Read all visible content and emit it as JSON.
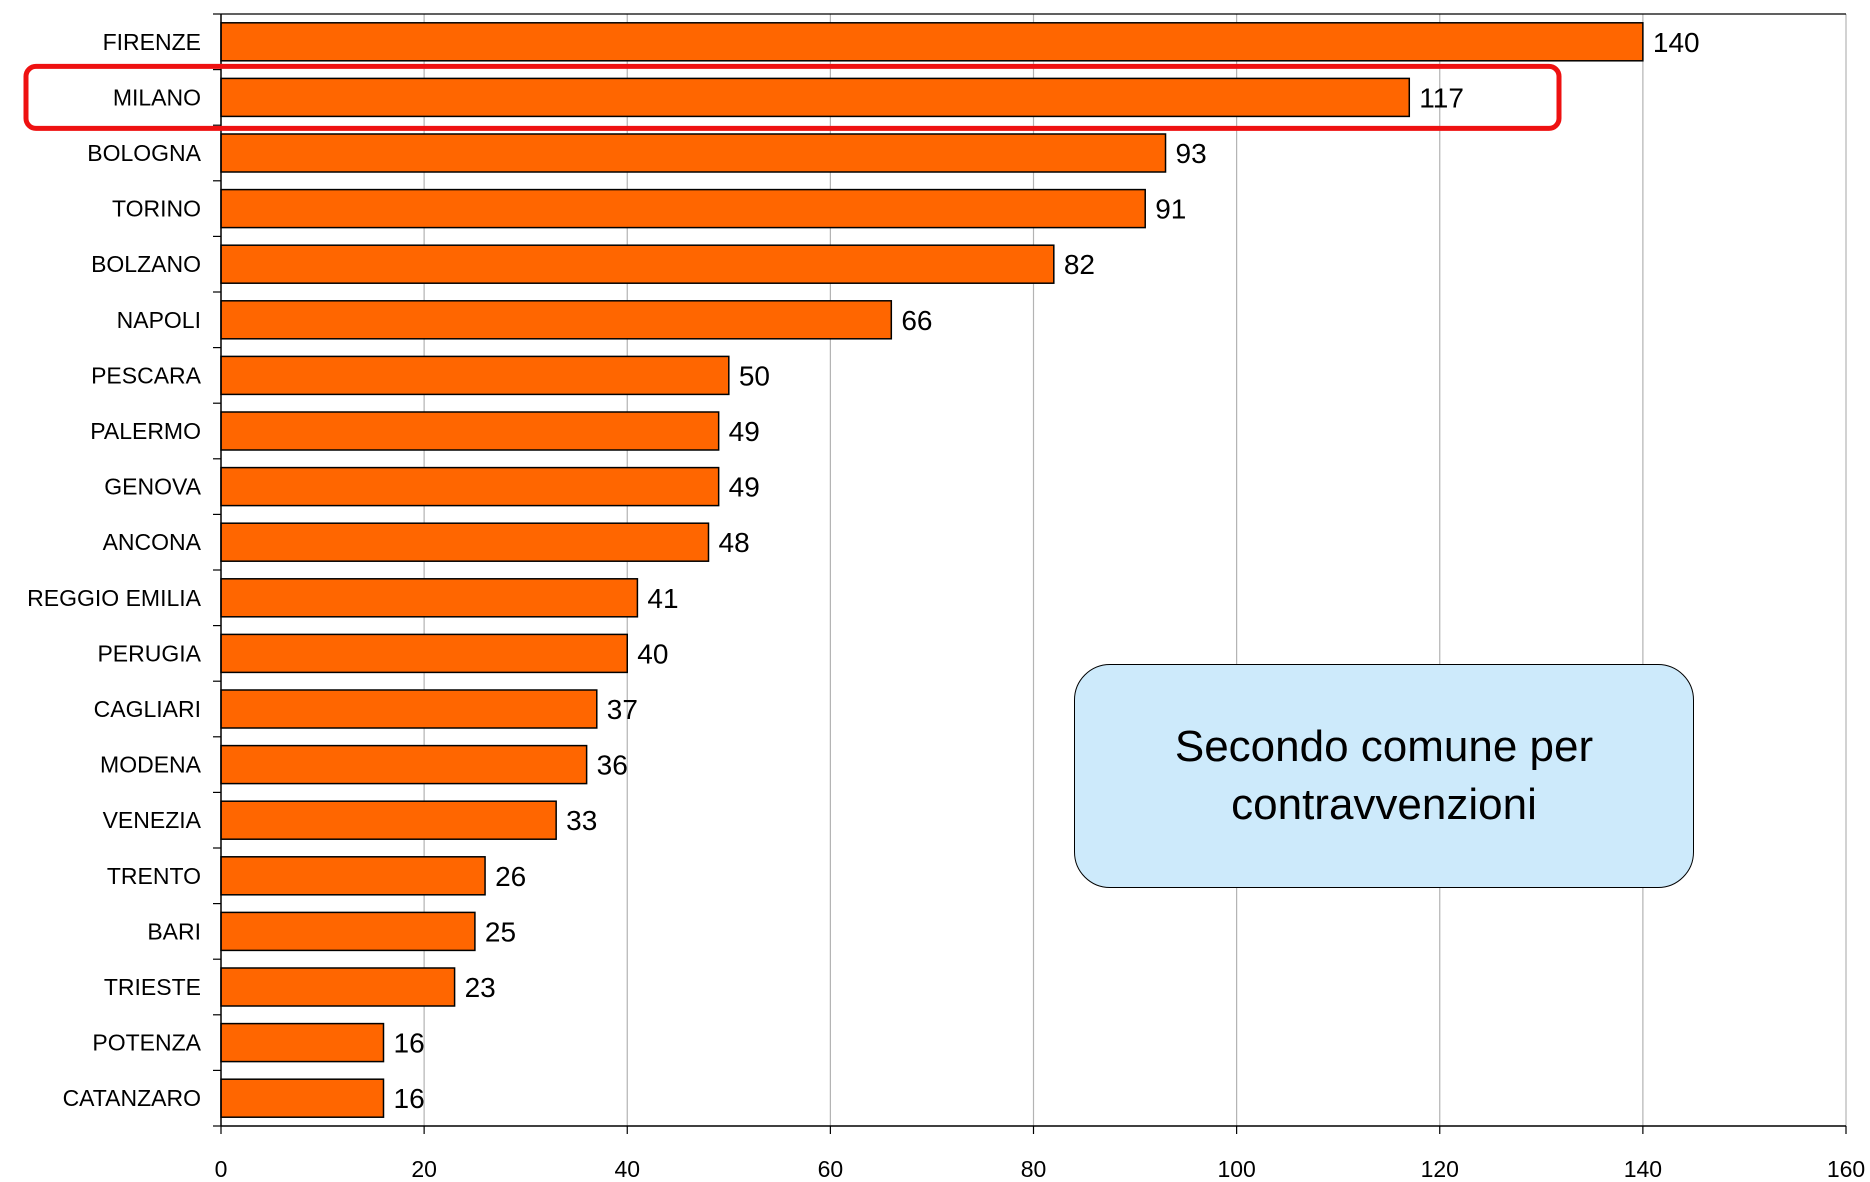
{
  "chart_data": {
    "type": "bar",
    "orientation": "horizontal",
    "categories": [
      "FIRENZE",
      "MILANO",
      "BOLOGNA",
      "TORINO",
      "BOLZANO",
      "NAPOLI",
      "PESCARA",
      "PALERMO",
      "GENOVA",
      "ANCONA",
      "REGGIO EMILIA",
      "PERUGIA",
      "CAGLIARI",
      "MODENA",
      "VENEZIA",
      "TRENTO",
      "BARI",
      "TRIESTE",
      "POTENZA",
      "CATANZARO"
    ],
    "values": [
      140,
      117,
      93,
      91,
      82,
      66,
      50,
      49,
      49,
      48,
      41,
      40,
      37,
      36,
      33,
      26,
      25,
      23,
      16,
      16
    ],
    "value_labels": [
      "140",
      "117",
      "93",
      "91",
      "82",
      "66",
      "50",
      "49",
      "49",
      "48",
      "41",
      "40",
      "37",
      "36",
      "33",
      "26",
      "25",
      "23",
      "16",
      "16"
    ],
    "xlim": [
      0,
      160
    ],
    "xticks": [
      "0",
      "20",
      "40",
      "60",
      "80",
      "100",
      "120",
      "140",
      "160"
    ],
    "xgrid": true,
    "legend": "none",
    "highlight_category": "MILANO",
    "annotation": "Secondo comune per contravvenzioni"
  },
  "colors": {
    "bar_fill": "#ff6600",
    "bar_stroke": "#000000",
    "highlight_stroke": "#ee1111",
    "callout_fill": "#cdeafb",
    "grid": "#b3b3b3"
  }
}
